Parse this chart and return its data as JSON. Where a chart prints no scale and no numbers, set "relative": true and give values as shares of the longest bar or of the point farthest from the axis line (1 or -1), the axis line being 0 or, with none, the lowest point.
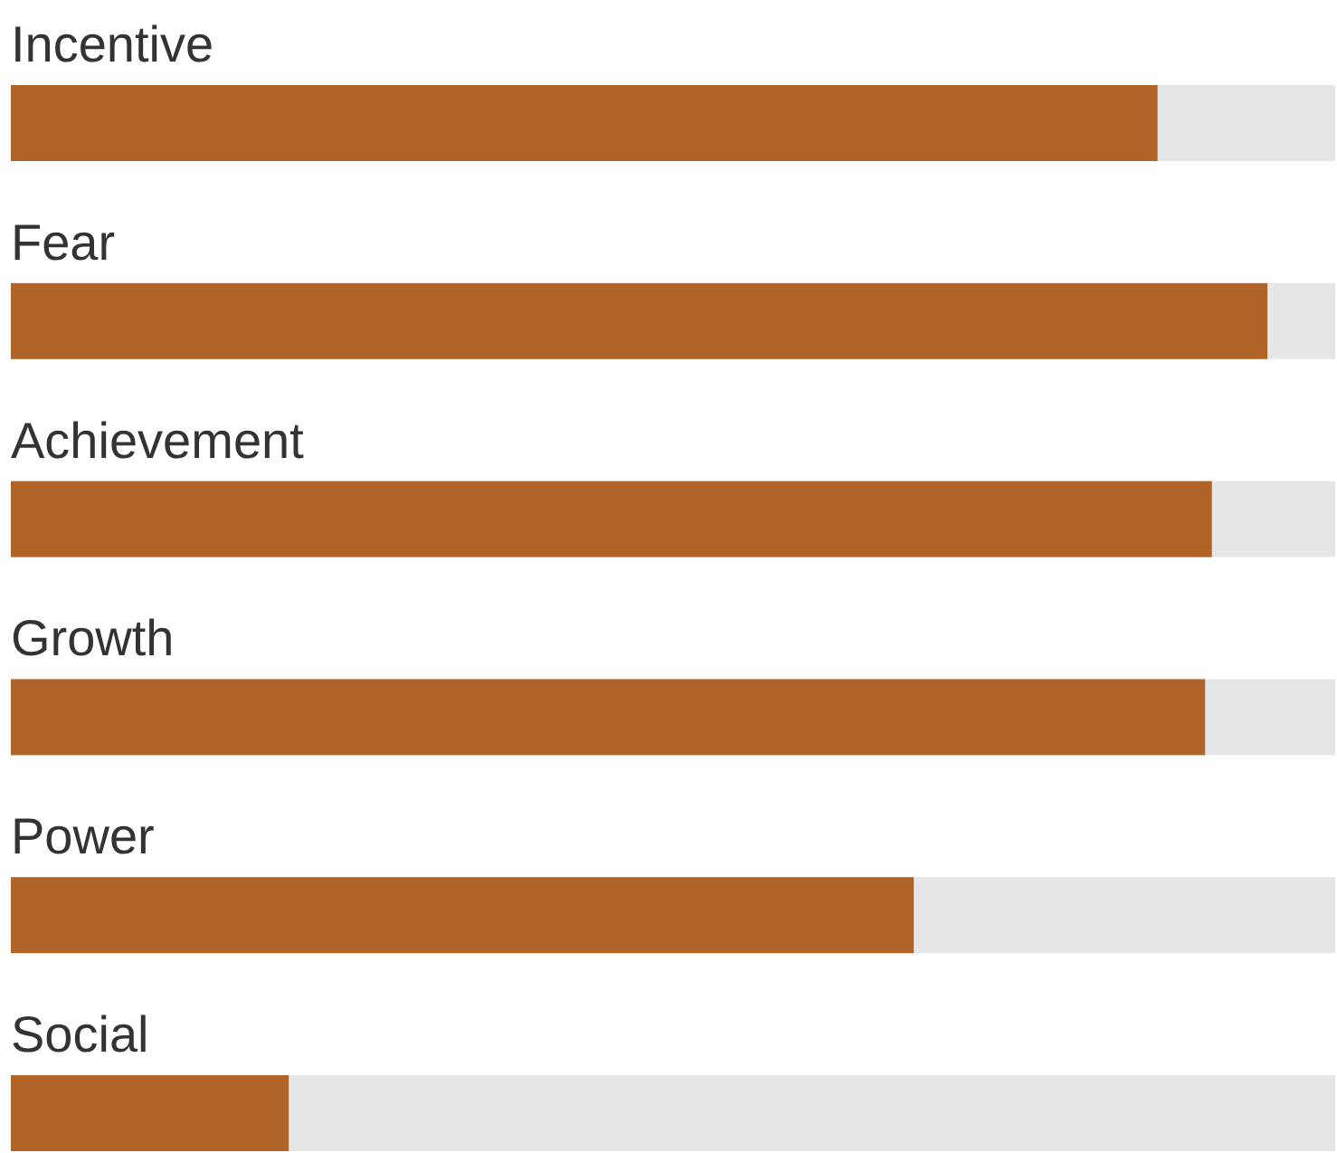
{
  "chart_data": {
    "type": "bar",
    "orientation": "horizontal",
    "stacked": true,
    "relative": true,
    "categories": [
      "Incentive",
      "Fear",
      "Achievement",
      "Growth",
      "Power",
      "Social"
    ],
    "series": [
      {
        "color": "#b06428",
        "values": [
          0.866,
          0.949,
          0.907,
          0.902,
          0.682,
          0.21
        ]
      },
      {
        "color": "#e5e6e8",
        "values": [
          0.134,
          0.051,
          0.093,
          0.098,
          0.318,
          0.79
        ]
      }
    ]
  }
}
